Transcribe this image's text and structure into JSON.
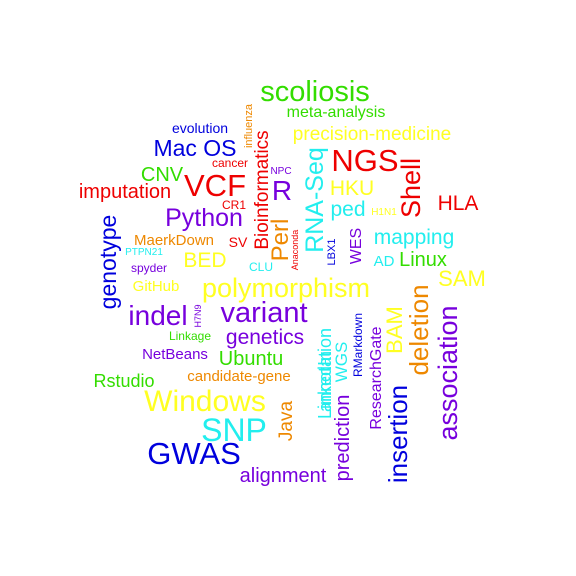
{
  "words": [
    {
      "text": "scoliosis",
      "color": "#33dd00"
    },
    {
      "text": "meta-analysis",
      "color": "#33dd00"
    },
    {
      "text": "evolution",
      "color": "#0000dd"
    },
    {
      "text": "influenza",
      "color": "#ee8800"
    },
    {
      "text": "precision-medicine",
      "color": "#ffff22"
    },
    {
      "text": "Mac OS",
      "color": "#0000dd"
    },
    {
      "text": "Bioinformatics",
      "color": "#ee0000"
    },
    {
      "text": "cancer",
      "color": "#ee0000"
    },
    {
      "text": "NGS",
      "color": "#ee0000"
    },
    {
      "text": "NPC",
      "color": "#7700dd"
    },
    {
      "text": "RNA-Seq",
      "color": "#22eeee"
    },
    {
      "text": "CNV",
      "color": "#33dd00"
    },
    {
      "text": "VCF",
      "color": "#ee0000"
    },
    {
      "text": "R",
      "color": "#7700dd"
    },
    {
      "text": "HKU",
      "color": "#ffff22"
    },
    {
      "text": "Shell",
      "color": "#ee0000"
    },
    {
      "text": "imputation",
      "color": "#ee0000"
    },
    {
      "text": "CR1",
      "color": "#ee0000"
    },
    {
      "text": "Perl",
      "color": "#ee8800"
    },
    {
      "text": "ped",
      "color": "#22eeee"
    },
    {
      "text": "H1N1",
      "color": "#ffff22"
    },
    {
      "text": "HLA",
      "color": "#ee0000"
    },
    {
      "text": "genotype",
      "color": "#0000dd"
    },
    {
      "text": "Python",
      "color": "#7700dd"
    },
    {
      "text": "MaerkDown",
      "color": "#ee8800"
    },
    {
      "text": "SV",
      "color": "#ee0000"
    },
    {
      "text": "mapping",
      "color": "#22eeee"
    },
    {
      "text": "PTPN21",
      "color": "#22eeee"
    },
    {
      "text": "BED",
      "color": "#ffff22"
    },
    {
      "text": "CLU",
      "color": "#22eeee"
    },
    {
      "text": "Anaconda",
      "color": "#ee0000"
    },
    {
      "text": "LBX1",
      "color": "#0000dd"
    },
    {
      "text": "WES",
      "color": "#7700dd"
    },
    {
      "text": "AD",
      "color": "#22eeee"
    },
    {
      "text": "Linux",
      "color": "#33dd00"
    },
    {
      "text": "spyder",
      "color": "#7700dd"
    },
    {
      "text": "SAM",
      "color": "#ffff22"
    },
    {
      "text": "GitHub",
      "color": "#ffff22"
    },
    {
      "text": "polymorphism",
      "color": "#ffff22"
    },
    {
      "text": "indel",
      "color": "#7700dd"
    },
    {
      "text": "H7N9",
      "color": "#7700dd"
    },
    {
      "text": "variant",
      "color": "#7700dd"
    },
    {
      "text": "Linkage",
      "color": "#33dd00"
    },
    {
      "text": "genetics",
      "color": "#7700dd"
    },
    {
      "text": "LinkedIn",
      "color": "#22eeee"
    },
    {
      "text": "annotation",
      "color": "#22eeee"
    },
    {
      "text": "WGS",
      "color": "#22eeee"
    },
    {
      "text": "RMarkdown",
      "color": "#0000dd"
    },
    {
      "text": "ResearchGate",
      "color": "#7700dd"
    },
    {
      "text": "BAM",
      "color": "#ffff22"
    },
    {
      "text": "deletion",
      "color": "#ee8800"
    },
    {
      "text": "association",
      "color": "#7700dd"
    },
    {
      "text": "NetBeans",
      "color": "#7700dd"
    },
    {
      "text": "Ubuntu",
      "color": "#33dd00"
    },
    {
      "text": "candidate-gene",
      "color": "#ee8800"
    },
    {
      "text": "Rstudio",
      "color": "#33dd00"
    },
    {
      "text": "Windows",
      "color": "#ffff22"
    },
    {
      "text": "Java",
      "color": "#ee8800"
    },
    {
      "text": "prediction",
      "color": "#7700dd"
    },
    {
      "text": "insertion",
      "color": "#0000dd"
    },
    {
      "text": "SNP",
      "color": "#22eeee"
    },
    {
      "text": "GWAS",
      "color": "#0000dd"
    },
    {
      "text": "alignment",
      "color": "#7700dd"
    }
  ]
}
